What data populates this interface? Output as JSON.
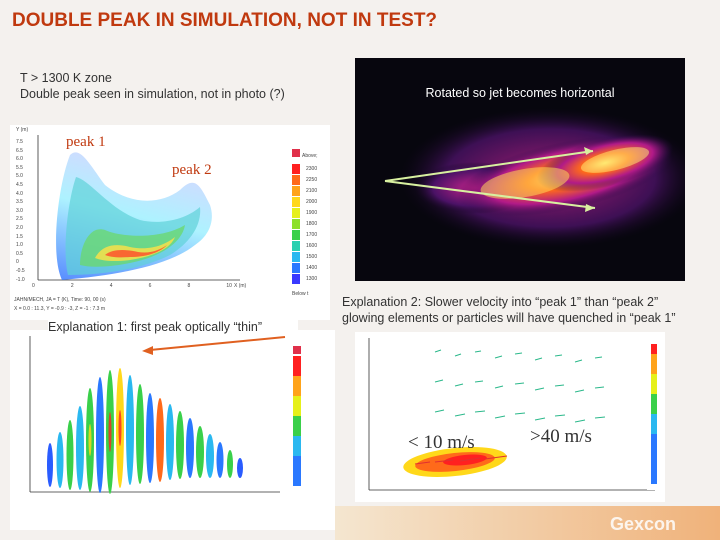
{
  "slide": {
    "title": "DOUBLE PEAK IN SIMULATION, NOT IN TEST?",
    "notes": {
      "line1": "T > 1300 K zone",
      "line2": "Double peak seen in simulation, not in photo (?)"
    },
    "photo_caption": "Rotated so jet becomes horizontal",
    "peak1_label": "peak 1",
    "peak2_label": "peak 2",
    "explanation1": "Explanation 1: first peak optically “thin”",
    "explanation2_line1": "Explanation 2: Slower velocity into “peak 1” than “peak 2”",
    "explanation2_line2": "glowing elements or particles will have quenched in “peak 1”",
    "velocity_low": "< 10 m/s",
    "velocity_high": ">40 m/s"
  },
  "plot1": {
    "axis_y_label": "Y (m)",
    "axis_x_label": "X (m)",
    "x_ticks": [
      "0",
      "2",
      "4",
      "6",
      "8",
      "10"
    ],
    "y_ticks": [
      "7.5",
      "6.5",
      "6.0",
      "5.5",
      "5.0",
      "4.5",
      "4.0",
      "3.5",
      "3.0",
      "2.5",
      "2.0",
      "1.5",
      "1.0",
      "0.5",
      "0",
      "-0.5",
      "-1.0"
    ],
    "legend_title": "Above;",
    "legend_values": [
      "2300",
      "2250",
      "2100",
      "2000",
      "1900",
      "1800",
      "1700",
      "1600",
      "1500",
      "1400",
      "1300"
    ],
    "legend_footer": "Below t",
    "caption_line1": "JAHN/MECH, JA = T (K), Time: 90, 00 (s)",
    "caption_line2": "X = 0.0 : 11.3, Y = -0.9 : -3, Z = -1 : 7.3 m"
  },
  "colors": {
    "title": "#c0390f",
    "accent_peak": "#c0390f",
    "arrow": "#e06020",
    "arrow_photo": "#d8f0a0"
  },
  "logo_text": "Gexcon"
}
